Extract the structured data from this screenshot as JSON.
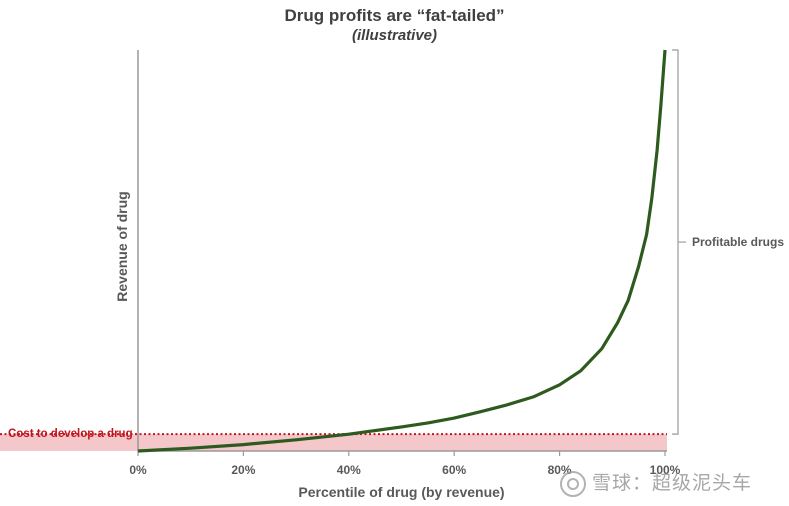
{
  "chart_data": {
    "type": "area",
    "title": "Drug profits are “fat-tailed”",
    "subtitle": "(illustrative)",
    "xlabel": "Percentile of drug (by revenue)",
    "ylabel": "Revenue of drug",
    "x_ticks": [
      "0%",
      "20%",
      "40%",
      "60%",
      "80%",
      "100%"
    ],
    "xlim": [
      0,
      100
    ],
    "ylim": [
      0,
      100
    ],
    "series": [
      {
        "x": [
          0,
          10,
          20,
          30,
          40,
          50,
          55,
          60,
          65,
          70,
          75,
          80,
          84,
          88,
          91,
          93,
          95,
          96.5,
          97.5,
          98.5,
          99.2,
          100
        ],
        "y": [
          0,
          0.7,
          1.6,
          2.8,
          4.2,
          6.0,
          7.0,
          8.2,
          9.8,
          11.5,
          13.5,
          16.5,
          20.0,
          25.5,
          32.0,
          37.5,
          46.0,
          54.0,
          63.0,
          75.0,
          86.0,
          100
        ]
      }
    ],
    "cost_threshold": {
      "label": "Cost to develop a drug",
      "y": 4.2,
      "color": "#c0161e"
    },
    "bracket_annotation": {
      "label": "Profitable drugs"
    },
    "colors": {
      "curve": "#2d5a1e",
      "cost_fill": "#f4c7ca",
      "cost_line": "#c0161e",
      "axis": "#9a9a9a",
      "text": "#595959"
    },
    "grid": false,
    "legend": "none"
  },
  "watermark": "雪球：超级泥头车"
}
